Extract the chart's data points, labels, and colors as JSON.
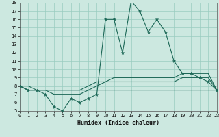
{
  "title": "",
  "xlabel": "Humidex (Indice chaleur)",
  "xlim": [
    0,
    23
  ],
  "ylim": [
    5,
    18
  ],
  "xticks": [
    0,
    1,
    2,
    3,
    4,
    5,
    6,
    7,
    8,
    9,
    10,
    11,
    12,
    13,
    14,
    15,
    16,
    17,
    18,
    19,
    20,
    21,
    22,
    23
  ],
  "yticks": [
    5,
    6,
    7,
    8,
    9,
    10,
    11,
    12,
    13,
    14,
    15,
    16,
    17,
    18
  ],
  "bg_color": "#cce8e0",
  "grid_color": "#99ccc0",
  "line_color": "#1a6655",
  "x": [
    0,
    1,
    2,
    3,
    4,
    5,
    6,
    7,
    8,
    9,
    10,
    11,
    12,
    13,
    14,
    15,
    16,
    17,
    18,
    19,
    20,
    21,
    22,
    23
  ],
  "y_main": [
    8.0,
    7.5,
    7.5,
    7.0,
    5.5,
    5.0,
    6.5,
    6.0,
    6.5,
    7.0,
    16.0,
    16.0,
    12.0,
    18.2,
    17.0,
    14.5,
    16.0,
    14.5,
    11.0,
    9.5,
    9.5,
    9.0,
    8.5,
    7.5
  ],
  "y_line2": [
    8.0,
    7.5,
    7.5,
    7.5,
    7.0,
    7.0,
    7.0,
    7.0,
    7.5,
    8.0,
    8.5,
    8.5,
    8.5,
    8.5,
    8.5,
    8.5,
    8.5,
    8.5,
    8.5,
    9.0,
    9.0,
    9.0,
    9.0,
    7.5
  ],
  "y_line3": [
    8.0,
    8.0,
    7.5,
    7.5,
    7.5,
    7.5,
    7.5,
    7.5,
    8.0,
    8.5,
    8.5,
    9.0,
    9.0,
    9.0,
    9.0,
    9.0,
    9.0,
    9.0,
    9.0,
    9.5,
    9.5,
    9.5,
    9.5,
    7.5
  ],
  "y_flat": [
    8.0,
    7.5,
    7.5,
    7.5,
    7.5,
    7.5,
    7.5,
    7.5,
    7.5,
    7.5,
    7.5,
    7.5,
    7.5,
    7.5,
    7.5,
    7.5,
    7.5,
    7.5,
    7.5,
    7.5,
    7.5,
    7.5,
    7.5,
    7.5
  ]
}
